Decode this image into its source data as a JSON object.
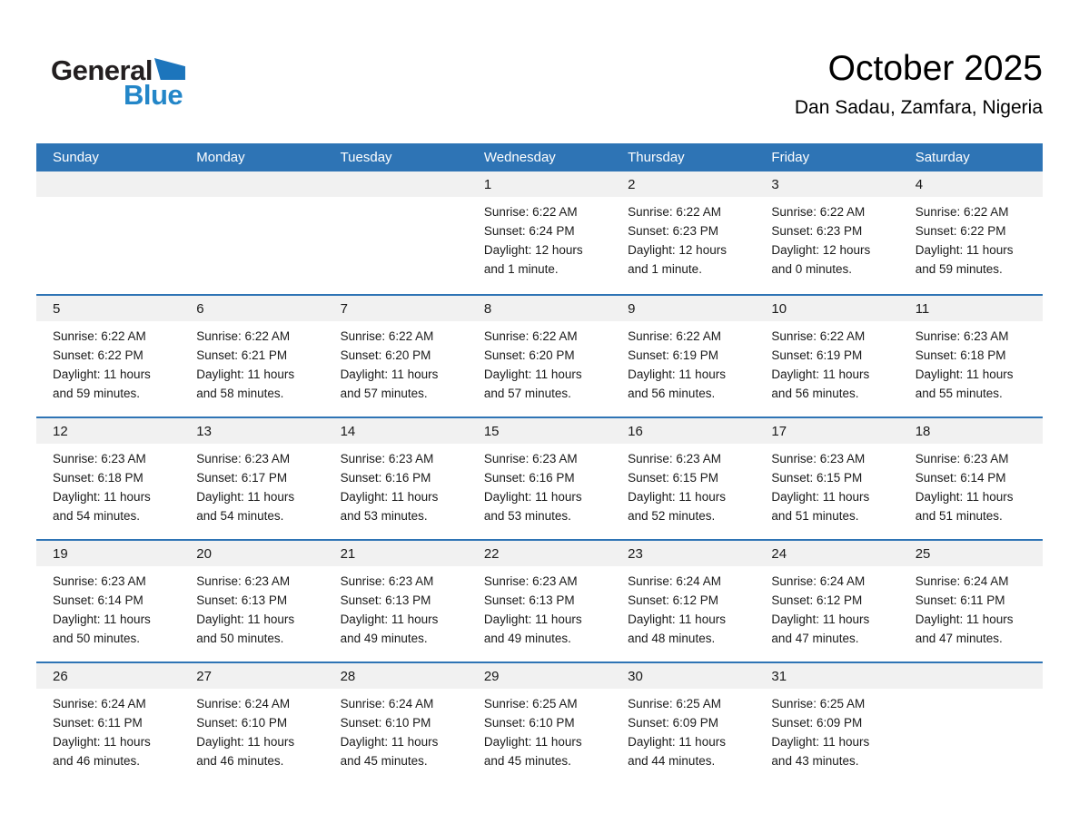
{
  "logo": {
    "general": "General",
    "blue": "Blue"
  },
  "header": {
    "title": "October 2025",
    "subtitle": "Dan Sadau, Zamfara, Nigeria"
  },
  "colors": {
    "header_blue": "#2E74B5",
    "row_border_blue": "#2E74B5",
    "band_gray": "#F1F1F1",
    "logo_blue": "#1C75BC",
    "logo_text_blue": "#2386C8"
  },
  "weekdays": [
    "Sunday",
    "Monday",
    "Tuesday",
    "Wednesday",
    "Thursday",
    "Friday",
    "Saturday"
  ],
  "calendar": {
    "weeks": [
      [
        null,
        null,
        null,
        {
          "day": "1",
          "sunrise": "Sunrise: 6:22 AM",
          "sunset": "Sunset: 6:24 PM",
          "daylight": "Daylight: 12 hours and 1 minute."
        },
        {
          "day": "2",
          "sunrise": "Sunrise: 6:22 AM",
          "sunset": "Sunset: 6:23 PM",
          "daylight": "Daylight: 12 hours and 1 minute."
        },
        {
          "day": "3",
          "sunrise": "Sunrise: 6:22 AM",
          "sunset": "Sunset: 6:23 PM",
          "daylight": "Daylight: 12 hours and 0 minutes."
        },
        {
          "day": "4",
          "sunrise": "Sunrise: 6:22 AM",
          "sunset": "Sunset: 6:22 PM",
          "daylight": "Daylight: 11 hours and 59 minutes."
        }
      ],
      [
        {
          "day": "5",
          "sunrise": "Sunrise: 6:22 AM",
          "sunset": "Sunset: 6:22 PM",
          "daylight": "Daylight: 11 hours and 59 minutes."
        },
        {
          "day": "6",
          "sunrise": "Sunrise: 6:22 AM",
          "sunset": "Sunset: 6:21 PM",
          "daylight": "Daylight: 11 hours and 58 minutes."
        },
        {
          "day": "7",
          "sunrise": "Sunrise: 6:22 AM",
          "sunset": "Sunset: 6:20 PM",
          "daylight": "Daylight: 11 hours and 57 minutes."
        },
        {
          "day": "8",
          "sunrise": "Sunrise: 6:22 AM",
          "sunset": "Sunset: 6:20 PM",
          "daylight": "Daylight: 11 hours and 57 minutes."
        },
        {
          "day": "9",
          "sunrise": "Sunrise: 6:22 AM",
          "sunset": "Sunset: 6:19 PM",
          "daylight": "Daylight: 11 hours and 56 minutes."
        },
        {
          "day": "10",
          "sunrise": "Sunrise: 6:22 AM",
          "sunset": "Sunset: 6:19 PM",
          "daylight": "Daylight: 11 hours and 56 minutes."
        },
        {
          "day": "11",
          "sunrise": "Sunrise: 6:23 AM",
          "sunset": "Sunset: 6:18 PM",
          "daylight": "Daylight: 11 hours and 55 minutes."
        }
      ],
      [
        {
          "day": "12",
          "sunrise": "Sunrise: 6:23 AM",
          "sunset": "Sunset: 6:18 PM",
          "daylight": "Daylight: 11 hours and 54 minutes."
        },
        {
          "day": "13",
          "sunrise": "Sunrise: 6:23 AM",
          "sunset": "Sunset: 6:17 PM",
          "daylight": "Daylight: 11 hours and 54 minutes."
        },
        {
          "day": "14",
          "sunrise": "Sunrise: 6:23 AM",
          "sunset": "Sunset: 6:16 PM",
          "daylight": "Daylight: 11 hours and 53 minutes."
        },
        {
          "day": "15",
          "sunrise": "Sunrise: 6:23 AM",
          "sunset": "Sunset: 6:16 PM",
          "daylight": "Daylight: 11 hours and 53 minutes."
        },
        {
          "day": "16",
          "sunrise": "Sunrise: 6:23 AM",
          "sunset": "Sunset: 6:15 PM",
          "daylight": "Daylight: 11 hours and 52 minutes."
        },
        {
          "day": "17",
          "sunrise": "Sunrise: 6:23 AM",
          "sunset": "Sunset: 6:15 PM",
          "daylight": "Daylight: 11 hours and 51 minutes."
        },
        {
          "day": "18",
          "sunrise": "Sunrise: 6:23 AM",
          "sunset": "Sunset: 6:14 PM",
          "daylight": "Daylight: 11 hours and 51 minutes."
        }
      ],
      [
        {
          "day": "19",
          "sunrise": "Sunrise: 6:23 AM",
          "sunset": "Sunset: 6:14 PM",
          "daylight": "Daylight: 11 hours and 50 minutes."
        },
        {
          "day": "20",
          "sunrise": "Sunrise: 6:23 AM",
          "sunset": "Sunset: 6:13 PM",
          "daylight": "Daylight: 11 hours and 50 minutes."
        },
        {
          "day": "21",
          "sunrise": "Sunrise: 6:23 AM",
          "sunset": "Sunset: 6:13 PM",
          "daylight": "Daylight: 11 hours and 49 minutes."
        },
        {
          "day": "22",
          "sunrise": "Sunrise: 6:23 AM",
          "sunset": "Sunset: 6:13 PM",
          "daylight": "Daylight: 11 hours and 49 minutes."
        },
        {
          "day": "23",
          "sunrise": "Sunrise: 6:24 AM",
          "sunset": "Sunset: 6:12 PM",
          "daylight": "Daylight: 11 hours and 48 minutes."
        },
        {
          "day": "24",
          "sunrise": "Sunrise: 6:24 AM",
          "sunset": "Sunset: 6:12 PM",
          "daylight": "Daylight: 11 hours and 47 minutes."
        },
        {
          "day": "25",
          "sunrise": "Sunrise: 6:24 AM",
          "sunset": "Sunset: 6:11 PM",
          "daylight": "Daylight: 11 hours and 47 minutes."
        }
      ],
      [
        {
          "day": "26",
          "sunrise": "Sunrise: 6:24 AM",
          "sunset": "Sunset: 6:11 PM",
          "daylight": "Daylight: 11 hours and 46 minutes."
        },
        {
          "day": "27",
          "sunrise": "Sunrise: 6:24 AM",
          "sunset": "Sunset: 6:10 PM",
          "daylight": "Daylight: 11 hours and 46 minutes."
        },
        {
          "day": "28",
          "sunrise": "Sunrise: 6:24 AM",
          "sunset": "Sunset: 6:10 PM",
          "daylight": "Daylight: 11 hours and 45 minutes."
        },
        {
          "day": "29",
          "sunrise": "Sunrise: 6:25 AM",
          "sunset": "Sunset: 6:10 PM",
          "daylight": "Daylight: 11 hours and 45 minutes."
        },
        {
          "day": "30",
          "sunrise": "Sunrise: 6:25 AM",
          "sunset": "Sunset: 6:09 PM",
          "daylight": "Daylight: 11 hours and 44 minutes."
        },
        {
          "day": "31",
          "sunrise": "Sunrise: 6:25 AM",
          "sunset": "Sunset: 6:09 PM",
          "daylight": "Daylight: 11 hours and 43 minutes."
        },
        null
      ]
    ]
  }
}
